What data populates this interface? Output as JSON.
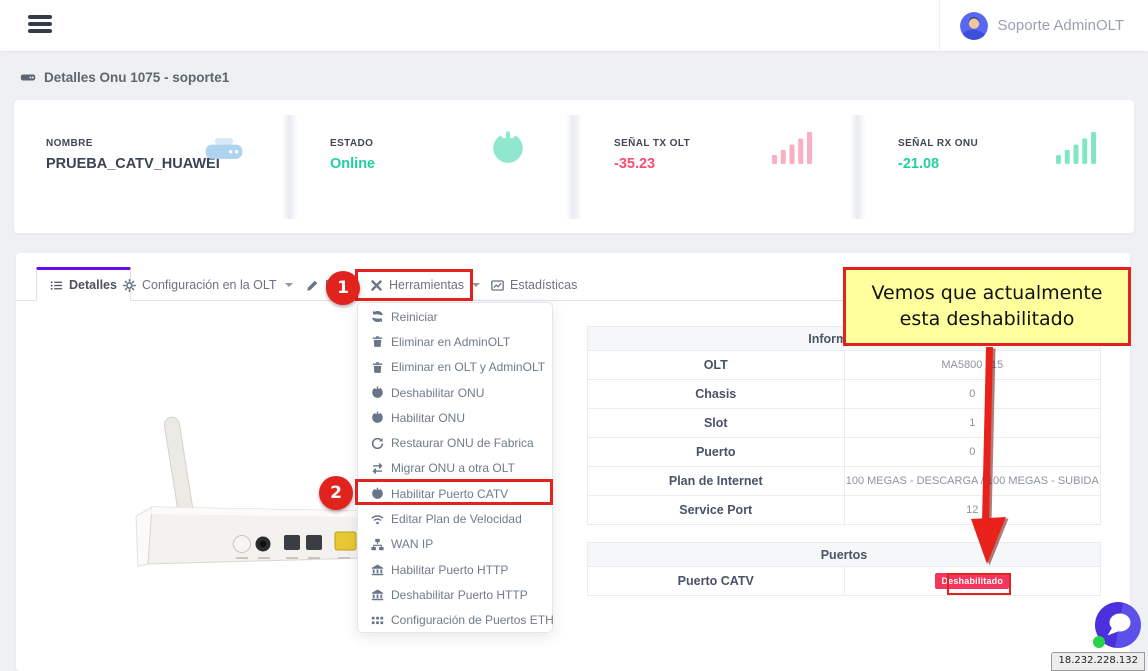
{
  "navbar": {
    "user_name": "Soporte AdminOLT",
    "icons": {
      "menu": "hamburger-icon",
      "user": "user-avatar-icon"
    }
  },
  "page": {
    "title": "Detalles Onu 1075 - soporte1",
    "title_icon": "hdd-icon"
  },
  "stats": {
    "cards": [
      {
        "label": "NOMBRE",
        "value": "PRUEBA_CATV_HUAWEI",
        "icon": "router-icon",
        "value_color": "#3c4454",
        "icon_color": "#aed3ee"
      },
      {
        "label": "ESTADO",
        "value": "Online",
        "icon": "power-icon",
        "value_color": "#21d0a0",
        "icon_color": "#8fe8ce"
      },
      {
        "label": "SEÑAL TX OLT",
        "value": "-35.23",
        "icon": "signal-icon",
        "value_color": "#fb4d72",
        "icon_color": "#f9afc0"
      },
      {
        "label": "SEÑAL RX ONU",
        "value": "-21.08",
        "icon": "signal-icon",
        "value_color": "#21d0a0",
        "icon_color": "#82e6c5"
      }
    ]
  },
  "tabs": [
    {
      "label": "Detalles",
      "icon": "list-icon",
      "active": true,
      "caret": false
    },
    {
      "label": "Configuración en la OLT",
      "icon": "gear-icon",
      "active": false,
      "caret": true
    },
    {
      "label": "Editar",
      "icon": "pencil-icon",
      "active": false,
      "caret": false
    },
    {
      "label": "Herramientas",
      "icon": "tools-icon",
      "active": false,
      "caret": true
    },
    {
      "label": "Estadísticas",
      "icon": "chart-icon",
      "active": false,
      "caret": false
    }
  ],
  "menu": {
    "items": [
      {
        "label": "Reiniciar",
        "icon": "sync-icon"
      },
      {
        "label": "Eliminar en AdminOLT",
        "icon": "trash-icon"
      },
      {
        "label": "Eliminar en OLT y AdminOLT",
        "icon": "trash-icon"
      },
      {
        "label": "Deshabilitar ONU",
        "icon": "power-icon"
      },
      {
        "label": "Habilitar ONU",
        "icon": "power-icon"
      },
      {
        "label": "Restaurar ONU de Fabrica",
        "icon": "redo-icon"
      },
      {
        "label": "Migrar ONU a otra OLT",
        "icon": "exchange-icon"
      },
      {
        "label": "Habilitar Puerto CATV",
        "icon": "power-icon"
      },
      {
        "label": "Editar Plan de Velocidad",
        "icon": "wifi-icon"
      },
      {
        "label": "WAN IP",
        "icon": "sitemap-icon"
      },
      {
        "label": "Habilitar Puerto HTTP",
        "icon": "bank-icon"
      },
      {
        "label": "Deshabilitar Puerto HTTP",
        "icon": "bank-icon"
      },
      {
        "label": "Configuración de Puertos ETH",
        "icon": "grid-icon"
      }
    ]
  },
  "info_table": {
    "header": "Información",
    "rows": [
      [
        "OLT",
        "MA5800 x15"
      ],
      [
        "Chasis",
        "0"
      ],
      [
        "Slot",
        "1"
      ],
      [
        "Puerto",
        "0"
      ],
      [
        "Plan de Internet",
        "100 MEGAS - DESCARGA / 100 MEGAS - SUBIDA"
      ],
      [
        "Service Port",
        "12"
      ]
    ]
  },
  "ports_table": {
    "header": "Puertos",
    "rows": [
      {
        "label": "Puerto CATV",
        "badge": "Deshabilitado"
      }
    ]
  },
  "annotations": {
    "step1": "1",
    "step2": "2",
    "callout_text": "Vemos que actualmente esta deshabilitado",
    "annotation_color": "#e2231d",
    "callout_bg": "#ffff9e",
    "badge_color": "#f5365c",
    "accent_purple": "#6110f2"
  },
  "status_bar": {
    "ip": "18.232.228.132"
  }
}
